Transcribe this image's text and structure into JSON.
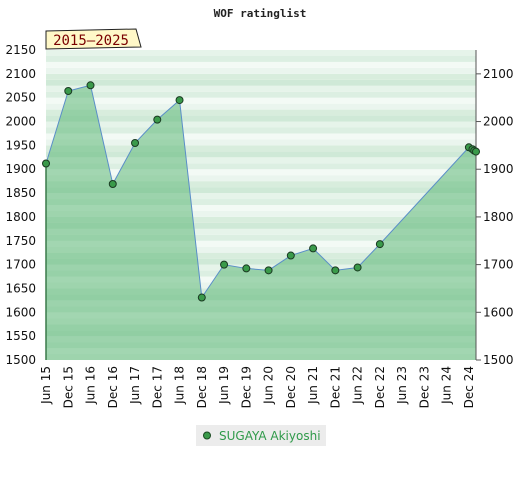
{
  "chart_data": {
    "type": "area",
    "title": "WOF ratinglist",
    "range_label": "2015–2025",
    "ylim": [
      1500,
      2150
    ],
    "y_ticks_left": [
      1500,
      1550,
      1600,
      1650,
      1700,
      1750,
      1800,
      1850,
      1900,
      1950,
      2000,
      2050,
      2100,
      2150
    ],
    "y_ticks_right": [
      1500,
      1600,
      1700,
      1800,
      1900,
      2000,
      2100
    ],
    "x_ticks": [
      {
        "label": "Jun 15",
        "x": 2015.42
      },
      {
        "label": "Dec 15",
        "x": 2015.92
      },
      {
        "label": "Jun 16",
        "x": 2016.42
      },
      {
        "label": "Dec 16",
        "x": 2016.92
      },
      {
        "label": "Jun 17",
        "x": 2017.42
      },
      {
        "label": "Dec 17",
        "x": 2017.92
      },
      {
        "label": "Jun 18",
        "x": 2018.42
      },
      {
        "label": "Dec 18",
        "x": 2018.92
      },
      {
        "label": "Jun 19",
        "x": 2019.42
      },
      {
        "label": "Dec 19",
        "x": 2019.92
      },
      {
        "label": "Jun 20",
        "x": 2020.42
      },
      {
        "label": "Dec 20",
        "x": 2020.92
      },
      {
        "label": "Jun 21",
        "x": 2021.42
      },
      {
        "label": "Dec 21",
        "x": 2021.92
      },
      {
        "label": "Jun 22",
        "x": 2022.42
      },
      {
        "label": "Dec 22",
        "x": 2022.92
      },
      {
        "label": "Jun 23",
        "x": 2023.42
      },
      {
        "label": "Dec 23",
        "x": 2023.92
      },
      {
        "label": "Jun 24",
        "x": 2024.42
      },
      {
        "label": "Dec 24",
        "x": 2024.92
      }
    ],
    "xlim": [
      2015.42,
      2025.08
    ],
    "series": [
      {
        "name": "SUGAYA Akiyoshi",
        "color": "#3a7a4a",
        "points": [
          {
            "x": 2015.42,
            "y": 1912
          },
          {
            "x": 2015.92,
            "y": 2064
          },
          {
            "x": 2016.42,
            "y": 2076
          },
          {
            "x": 2016.92,
            "y": 1869
          },
          {
            "x": 2017.42,
            "y": 1955
          },
          {
            "x": 2017.92,
            "y": 2004
          },
          {
            "x": 2018.42,
            "y": 2045
          },
          {
            "x": 2018.92,
            "y": 1631
          },
          {
            "x": 2019.42,
            "y": 1700
          },
          {
            "x": 2019.92,
            "y": 1692
          },
          {
            "x": 2020.42,
            "y": 1688
          },
          {
            "x": 2020.92,
            "y": 1719
          },
          {
            "x": 2021.42,
            "y": 1734
          },
          {
            "x": 2021.92,
            "y": 1688
          },
          {
            "x": 2022.42,
            "y": 1694
          },
          {
            "x": 2022.92,
            "y": 1743
          },
          {
            "x": 2024.92,
            "y": 1946
          },
          {
            "x": 2025.0,
            "y": 1942
          },
          {
            "x": 2025.04,
            "y": 1939
          },
          {
            "x": 2025.08,
            "y": 1937
          }
        ]
      }
    ]
  }
}
